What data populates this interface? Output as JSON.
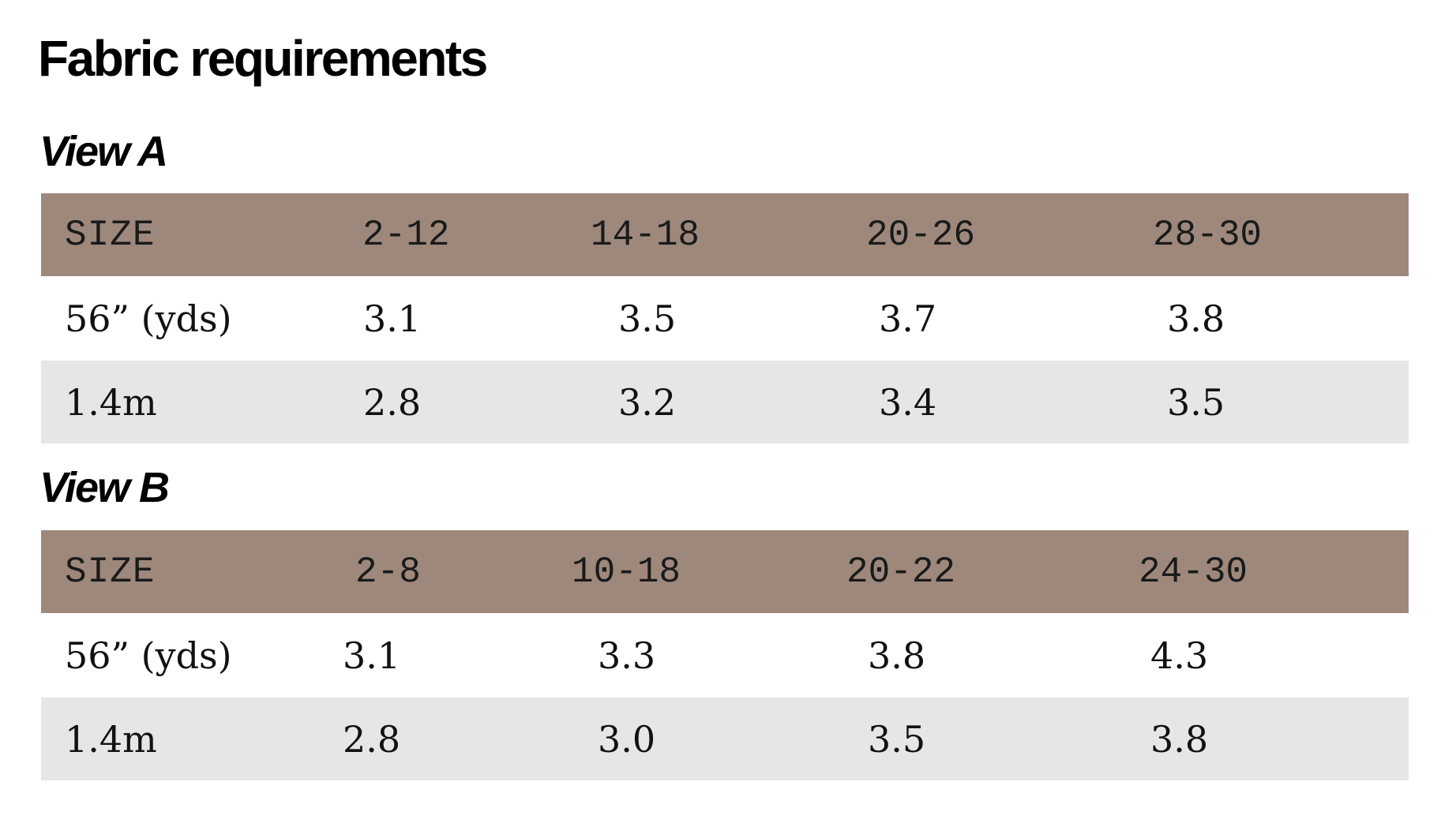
{
  "title": "Fabric requirements",
  "views": [
    {
      "title": "View A",
      "header": [
        "SIZE",
        "2-12",
        "14-18",
        "20-26",
        "28-30"
      ],
      "rows": [
        [
          "56” (yds)",
          "3.1",
          "3.5",
          "3.7",
          "3.8"
        ],
        [
          "1.4m",
          "2.8",
          "3.2",
          "3.4",
          "3.5"
        ]
      ]
    },
    {
      "title": "View B",
      "header": [
        "SIZE",
        "2-8",
        "10-18",
        "20-22",
        "24-30"
      ],
      "rows": [
        [
          "56” (yds)",
          "3.1",
          "3.3",
          "3.8",
          "4.3"
        ],
        [
          "1.4m",
          "2.8",
          "3.0",
          "3.5",
          "3.8"
        ]
      ]
    }
  ],
  "colors": {
    "header_background": "#9e887b",
    "alt_row_background": "#e6e6e8"
  }
}
